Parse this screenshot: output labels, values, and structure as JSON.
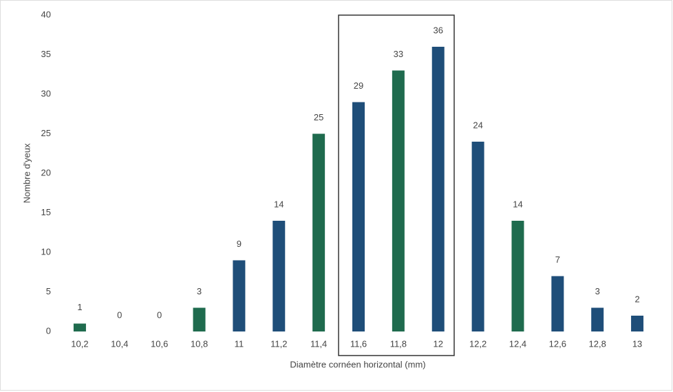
{
  "chart_data": {
    "type": "bar",
    "y_label": "Nombre d'yeux",
    "x_label": "Diamètre cornéen horizontal (mm)",
    "categories": [
      "10,2",
      "10,4",
      "10,6",
      "10,8",
      "11",
      "11,2",
      "11,4",
      "11,6",
      "11,8",
      "12",
      "12,2",
      "12,4",
      "12,6",
      "12,8",
      "13"
    ],
    "values": [
      1,
      0,
      0,
      3,
      9,
      14,
      25,
      29,
      33,
      36,
      24,
      14,
      7,
      3,
      2
    ],
    "colors": [
      "#1f6b4e",
      "#1f4e79",
      "#1f4e79",
      "#1f6b4e",
      "#1f4e79",
      "#1f4e79",
      "#1f6b4e",
      "#1f4e79",
      "#1f6b4e",
      "#1f4e79",
      "#1f4e79",
      "#1f6b4e",
      "#1f4e79",
      "#1f4e79",
      "#1f4e79"
    ],
    "ylim": [
      0,
      40
    ],
    "yticks": [
      0,
      5,
      10,
      15,
      20,
      25,
      30,
      35,
      40
    ],
    "grid": false
  }
}
